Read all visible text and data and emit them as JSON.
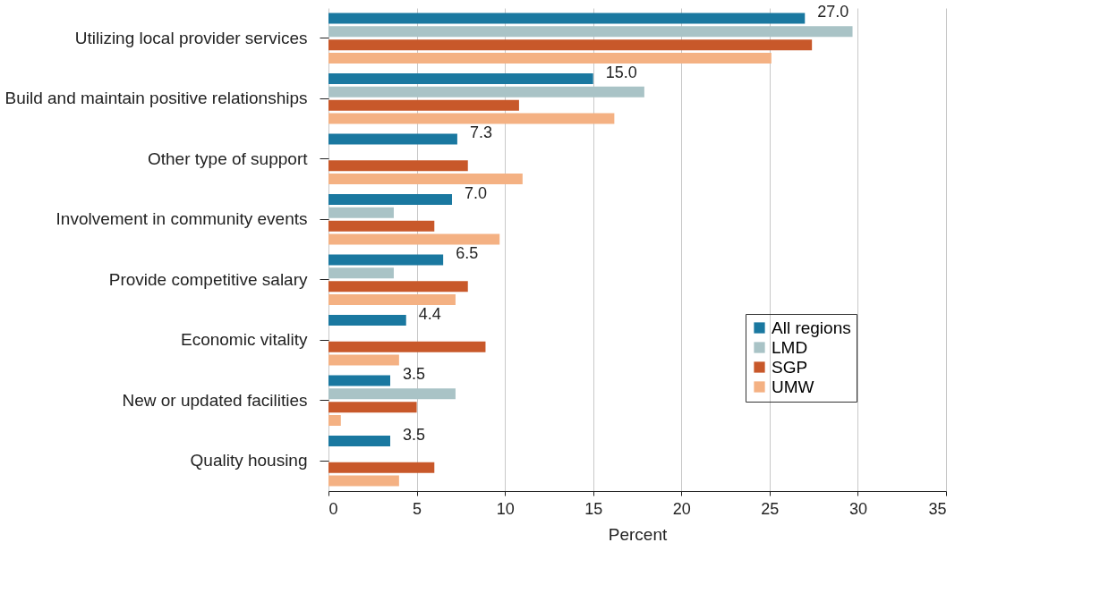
{
  "chart_data": {
    "type": "bar",
    "orientation": "horizontal",
    "xlabel": "Percent",
    "categories": [
      "Utilizing local provider services",
      "Build and maintain positive relationships",
      "Other type of support",
      "Involvement in community events",
      "Provide competitive salary",
      "Economic vitality",
      "New or updated facilities",
      "Quality housing"
    ],
    "series": [
      {
        "name": "All regions",
        "color": "#1a78a0",
        "values": [
          27.0,
          15.0,
          7.3,
          7.0,
          6.5,
          4.4,
          3.5,
          3.5
        ],
        "value_labels": [
          "27.0",
          "15.0",
          "7.3",
          "7.0",
          "6.5",
          "4.4",
          "3.5",
          "3.5"
        ]
      },
      {
        "name": "LMD",
        "color": "#a9c3c6",
        "values": [
          29.7,
          17.9,
          null,
          3.7,
          3.7,
          null,
          7.2,
          null
        ]
      },
      {
        "name": "SGP",
        "color": "#c8582a",
        "values": [
          27.4,
          10.8,
          7.9,
          6.0,
          7.9,
          8.9,
          5.0,
          6.0
        ]
      },
      {
        "name": "UMW",
        "color": "#f4b183",
        "values": [
          25.1,
          16.2,
          11.0,
          9.7,
          7.2,
          4.0,
          0.7,
          4.0
        ]
      }
    ],
    "xlim": [
      0,
      35
    ],
    "xticks": [
      0,
      5,
      10,
      15,
      20,
      25,
      30,
      35
    ],
    "grid": "x",
    "legend": "bottom right"
  }
}
